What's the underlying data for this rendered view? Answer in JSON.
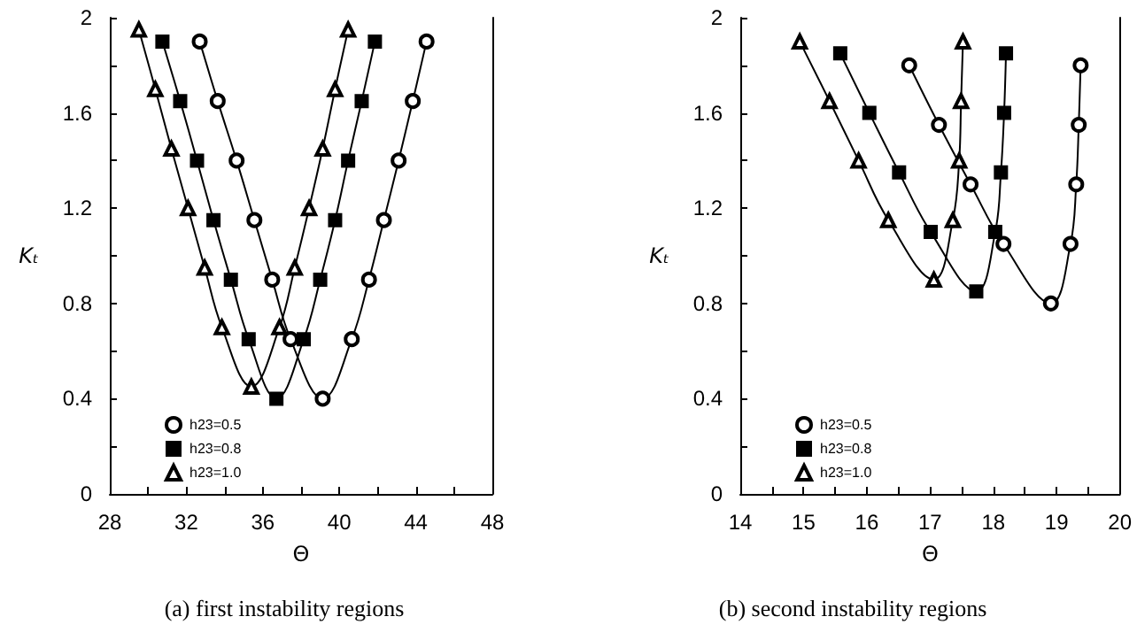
{
  "chart_data": [
    {
      "type": "line",
      "title": "(a) first instability regions",
      "xlabel": "Θ",
      "xlim": [
        28,
        48
      ],
      "xticks": [
        28,
        32,
        36,
        40,
        44,
        48
      ],
      "ylim": [
        0,
        2
      ],
      "yticks": [
        0,
        0.4,
        0.8,
        1.2,
        1.6,
        2
      ],
      "grid": false,
      "legend": "bottom left",
      "ylabel": "Kₜ",
      "series": [
        {
          "name": "h23=0.5",
          "color": "#000000",
          "marker": "circle",
          "x": [
            32.7,
            33.64,
            34.63,
            35.56,
            36.49,
            37.45,
            39.13,
            40.65,
            41.55,
            42.33,
            43.1,
            43.84,
            44.56
          ],
          "values": [
            1.9,
            1.65,
            1.4,
            1.15,
            0.9,
            0.65,
            0.4,
            0.65,
            0.9,
            1.15,
            1.4,
            1.65,
            1.9
          ]
        },
        {
          "name": "h23=0.8",
          "color": "#000000",
          "marker": "square",
          "x": [
            30.75,
            31.68,
            32.56,
            33.42,
            34.33,
            35.26,
            36.71,
            38.14,
            39.0,
            39.78,
            40.46,
            41.17,
            41.86
          ],
          "values": [
            1.9,
            1.65,
            1.4,
            1.15,
            0.9,
            0.65,
            0.4,
            0.65,
            0.9,
            1.15,
            1.4,
            1.65,
            1.9
          ]
        },
        {
          "name": "h23=1.0",
          "color": "#000000",
          "marker": "triangle",
          "x": [
            29.52,
            30.38,
            31.22,
            32.09,
            32.96,
            33.86,
            35.4,
            36.87,
            37.67,
            38.42,
            39.13,
            39.78,
            40.46
          ],
          "values": [
            1.95,
            1.7,
            1.45,
            1.2,
            0.95,
            0.7,
            0.45,
            0.7,
            0.95,
            1.2,
            1.45,
            1.7,
            1.95
          ]
        }
      ]
    },
    {
      "type": "line",
      "title": "(b) second instability regions",
      "xlabel": "Θ",
      "xlim": [
        14,
        20
      ],
      "xticks": [
        14,
        15,
        16,
        17,
        18,
        19,
        20
      ],
      "ylim": [
        0,
        2
      ],
      "yticks": [
        0,
        0.4,
        0.8,
        1.2,
        1.6,
        2
      ],
      "grid": false,
      "legend": "bottom left",
      "ylabel": "Kₜ",
      "series": [
        {
          "name": "h23=0.5",
          "color": "#000000",
          "marker": "circle",
          "x": [
            16.67,
            17.14,
            17.64,
            18.16,
            18.91,
            19.22,
            19.31,
            19.35,
            19.38
          ],
          "values": [
            1.8,
            1.55,
            1.3,
            1.05,
            0.8,
            1.05,
            1.3,
            1.55,
            1.8
          ]
        },
        {
          "name": "h23=0.8",
          "color": "#000000",
          "marker": "square",
          "x": [
            15.58,
            16.04,
            16.51,
            17.01,
            17.73,
            18.03,
            18.12,
            18.17,
            18.2
          ],
          "values": [
            1.85,
            1.6,
            1.35,
            1.1,
            0.85,
            1.1,
            1.35,
            1.6,
            1.85
          ]
        },
        {
          "name": "h23=1.0",
          "color": "#000000",
          "marker": "triangle",
          "x": [
            14.94,
            15.41,
            15.87,
            16.34,
            17.06,
            17.36,
            17.46,
            17.49,
            17.52
          ],
          "values": [
            1.9,
            1.65,
            1.4,
            1.15,
            0.9,
            1.15,
            1.4,
            1.65,
            1.9
          ]
        }
      ]
    }
  ]
}
